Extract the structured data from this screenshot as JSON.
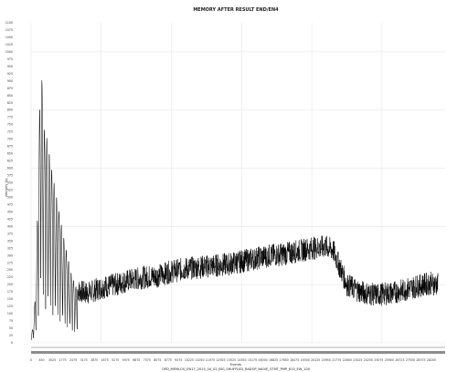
{
  "chart_data": {
    "type": "line",
    "title": "MEMORY AFTER RESULT END/EN4",
    "xlabel": "Events",
    "ylabel": "memory (k)",
    "subtitle": "OPD_MEMLOG_EN17_2015_04_02_BIG_SHUFFLED_RADOP_NAIVE_STMT_PMP_610_EW_100",
    "xlim": [
      0,
      29500
    ],
    "ylim": [
      0,
      1100
    ],
    "x_ticks": [
      "0",
      "450",
      "3025",
      "1775",
      "2475",
      "3175",
      "3875",
      "4575",
      "5275",
      "5975",
      "6675",
      "7375",
      "8075",
      "8775",
      "9475",
      "10225",
      "11050",
      "11975",
      "12925",
      "13525",
      "14350",
      "15175",
      "16000",
      "16825",
      "17650",
      "18475",
      "19300",
      "20125",
      "20950",
      "21775",
      "22600",
      "23425",
      "24250",
      "25075",
      "25900",
      "26725",
      "27550",
      "28375",
      "28200"
    ],
    "y_ticks": [
      "0",
      "25",
      "50",
      "75",
      "100",
      "125",
      "150",
      "175",
      "200",
      "225",
      "250",
      "275",
      "300",
      "325",
      "350",
      "375",
      "400",
      "425",
      "450",
      "475",
      "500",
      "525",
      "550",
      "575",
      "600",
      "625",
      "650",
      "675",
      "700",
      "725",
      "750",
      "775",
      "800",
      "825",
      "850",
      "875",
      "900",
      "925",
      "950",
      "975",
      "1000",
      "1025",
      "1050",
      "1075",
      "1100"
    ],
    "series": [
      {
        "color": "#000000",
        "profile": [
          [
            0,
            20
          ],
          [
            150,
            60
          ],
          [
            350,
            200
          ],
          [
            500,
            560
          ],
          [
            700,
            1000
          ],
          [
            900,
            740
          ],
          [
            1150,
            700
          ],
          [
            1450,
            600
          ],
          [
            1750,
            520
          ],
          [
            2100,
            420
          ],
          [
            2500,
            320
          ],
          [
            2900,
            230
          ],
          [
            3300,
            180
          ],
          [
            4000,
            170
          ],
          [
            5000,
            190
          ],
          [
            6000,
            200
          ],
          [
            7000,
            215
          ],
          [
            8000,
            225
          ],
          [
            9000,
            230
          ],
          [
            10000,
            245
          ],
          [
            11000,
            255
          ],
          [
            12000,
            260
          ],
          [
            13000,
            265
          ],
          [
            14000,
            270
          ],
          [
            15000,
            280
          ],
          [
            16000,
            290
          ],
          [
            17000,
            300
          ],
          [
            18000,
            305
          ],
          [
            19000,
            315
          ],
          [
            20000,
            325
          ],
          [
            21000,
            330
          ],
          [
            21500,
            320
          ],
          [
            22000,
            260
          ],
          [
            22500,
            200
          ],
          [
            23500,
            175
          ],
          [
            24500,
            165
          ],
          [
            25500,
            170
          ],
          [
            26500,
            180
          ],
          [
            27500,
            195
          ],
          [
            28500,
            205
          ],
          [
            29000,
            200
          ]
        ],
        "noise_amplitude": 40
      }
    ],
    "grid": true,
    "legend": "none"
  }
}
